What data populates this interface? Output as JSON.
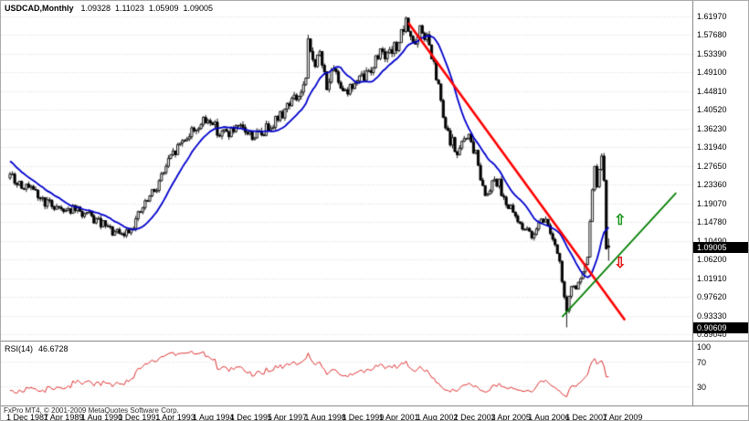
{
  "chart_data": {
    "type": "candlestick",
    "symbol_period": "USDCAD,Monthly",
    "ohlc_header": {
      "open": "1.09328",
      "high": "1.11023",
      "low": "1.05909",
      "close": "1.09005"
    },
    "current_price": 1.09005,
    "current_price_label": "1.09005",
    "level_value": 0.90609,
    "level_label": "0.90609",
    "y_axis": {
      "labels": [
        "1.61970",
        "1.57680",
        "1.53390",
        "1.49100",
        "1.44810",
        "1.40520",
        "1.36230",
        "1.31940",
        "1.27650",
        "1.23360",
        "1.19070",
        "1.14780",
        "1.10490",
        "1.06200",
        "1.01910",
        "0.97620",
        "0.93330",
        "0.89040"
      ]
    },
    "x_axis": {
      "months_per_tick": 16,
      "tick_labels": [
        "1 Dec 1987",
        "1 Apr 1989",
        "1 Aug 1990",
        "1 Dec 1991",
        "1 Apr 1993",
        "1 Aug 1994",
        "1 Dec 1995",
        "1 Apr 1997",
        "1 Aug 1998",
        "1 Dec 1999",
        "1 Apr 2001",
        "1 Aug 2002",
        "1 Dec 2003",
        "1 Apr 2005",
        "1 Aug 2006",
        "1 Dec 2007",
        "1 Apr 2009"
      ]
    },
    "last_candle": {
      "o": 1.09328,
      "h": 1.11023,
      "l": 1.05909,
      "c": 1.09005
    },
    "prehistory_start": -30,
    "candles_end_month": 257,
    "seed": 9,
    "noise": {
      "close_rel": 0.01,
      "wick_rel": 0.006
    },
    "waypoints": [
      [
        -30,
        1.42
      ],
      [
        -22,
        1.37
      ],
      [
        -14,
        1.32
      ],
      [
        -6,
        1.275
      ],
      [
        0,
        1.25
      ],
      [
        5,
        1.235
      ],
      [
        10,
        1.215
      ],
      [
        16,
        1.19
      ],
      [
        22,
        1.18
      ],
      [
        28,
        1.175
      ],
      [
        34,
        1.16
      ],
      [
        40,
        1.14
      ],
      [
        44,
        1.125
      ],
      [
        48,
        1.115
      ],
      [
        52,
        1.135
      ],
      [
        57,
        1.18
      ],
      [
        62,
        1.22
      ],
      [
        68,
        1.285
      ],
      [
        74,
        1.335
      ],
      [
        80,
        1.365
      ],
      [
        86,
        1.385
      ],
      [
        90,
        1.35
      ],
      [
        95,
        1.355
      ],
      [
        100,
        1.36
      ],
      [
        104,
        1.345
      ],
      [
        108,
        1.35
      ],
      [
        112,
        1.375
      ],
      [
        116,
        1.39
      ],
      [
        120,
        1.425
      ],
      [
        124,
        1.435
      ],
      [
        127,
        1.47
      ],
      [
        128,
        1.555
      ],
      [
        129,
        1.535
      ],
      [
        131,
        1.515
      ],
      [
        133,
        1.53
      ],
      [
        136,
        1.465
      ],
      [
        139,
        1.49
      ],
      [
        142,
        1.465
      ],
      [
        145,
        1.45
      ],
      [
        148,
        1.465
      ],
      [
        152,
        1.48
      ],
      [
        156,
        1.51
      ],
      [
        160,
        1.55
      ],
      [
        162,
        1.525
      ],
      [
        165,
        1.545
      ],
      [
        168,
        1.575
      ],
      [
        170,
        1.6
      ],
      [
        172,
        1.58
      ],
      [
        174,
        1.55
      ],
      [
        176,
        1.585
      ],
      [
        179,
        1.57
      ],
      [
        181,
        1.525
      ],
      [
        184,
        1.455
      ],
      [
        186,
        1.385
      ],
      [
        188,
        1.345
      ],
      [
        190,
        1.33
      ],
      [
        192,
        1.3
      ],
      [
        194,
        1.325
      ],
      [
        196,
        1.35
      ],
      [
        198,
        1.33
      ],
      [
        200,
        1.3
      ],
      [
        202,
        1.255
      ],
      [
        204,
        1.21
      ],
      [
        206,
        1.23
      ],
      [
        208,
        1.25
      ],
      [
        210,
        1.235
      ],
      [
        212,
        1.205
      ],
      [
        214,
        1.185
      ],
      [
        216,
        1.165
      ],
      [
        218,
        1.15
      ],
      [
        220,
        1.14
      ],
      [
        222,
        1.125
      ],
      [
        224,
        1.115
      ],
      [
        226,
        1.14
      ],
      [
        228,
        1.16
      ],
      [
        230,
        1.148
      ],
      [
        232,
        1.13
      ],
      [
        234,
        1.09
      ],
      [
        236,
        1.05
      ],
      [
        238,
        0.975
      ],
      [
        239,
        0.935
      ],
      [
        240,
        0.985
      ],
      [
        241,
        1.005
      ],
      [
        242,
        0.995
      ],
      [
        243,
        1.0
      ],
      [
        244,
        1.005
      ],
      [
        245,
        1.012
      ],
      [
        246,
        1.025
      ],
      [
        247,
        1.045
      ],
      [
        248,
        1.06
      ],
      [
        249,
        1.155
      ],
      [
        250,
        1.225
      ],
      [
        251,
        1.27
      ],
      [
        252,
        1.235
      ],
      [
        253,
        1.265
      ],
      [
        254,
        1.29
      ],
      [
        255,
        1.255
      ],
      [
        256,
        1.095
      ],
      [
        257,
        1.09
      ]
    ],
    "special": {
      "highs": {
        "128": 1.578,
        "170": 1.6175,
        "254": 1.3017
      },
      "lows": {
        "239": 0.9061
      }
    },
    "overlays": {
      "moving_average": {
        "type": "sma",
        "period": 15,
        "color": "#0000cd",
        "width": 1.8
      },
      "trendlines": [
        {
          "from": [
            171,
            1.605
          ],
          "to": [
            264,
            0.923
          ],
          "color": "#ff0000",
          "width": 2.6
        },
        {
          "from": [
            237,
            0.93
          ],
          "to": [
            286,
            1.215
          ],
          "color": "#007e00",
          "width": 1.7
        }
      ],
      "arrows": [
        {
          "dir": "up",
          "m": 262,
          "price": 1.148,
          "color": "#149314",
          "glyph": "⇧"
        },
        {
          "dir": "down",
          "m": 262,
          "price": 1.05,
          "color": "#e01010",
          "glyph": "⇩"
        }
      ]
    },
    "rsi": {
      "name": "RSI(14)",
      "value": "46.6728",
      "period": 14,
      "levels": [
        100,
        70,
        30
      ],
      "color": "#e03030"
    }
  },
  "footer": {
    "copyright": "FxPro MT4, © 2001-2009 MetaQuotes Software Corp."
  },
  "colors": {
    "background": "#ffffff",
    "grid": "#d9d9d9",
    "candle_outline": "#000000",
    "bull_fill": "#ffffff",
    "bear_fill": "#000000",
    "axis_box_bg": "#000000",
    "axis_box_text": "#ffffff"
  }
}
